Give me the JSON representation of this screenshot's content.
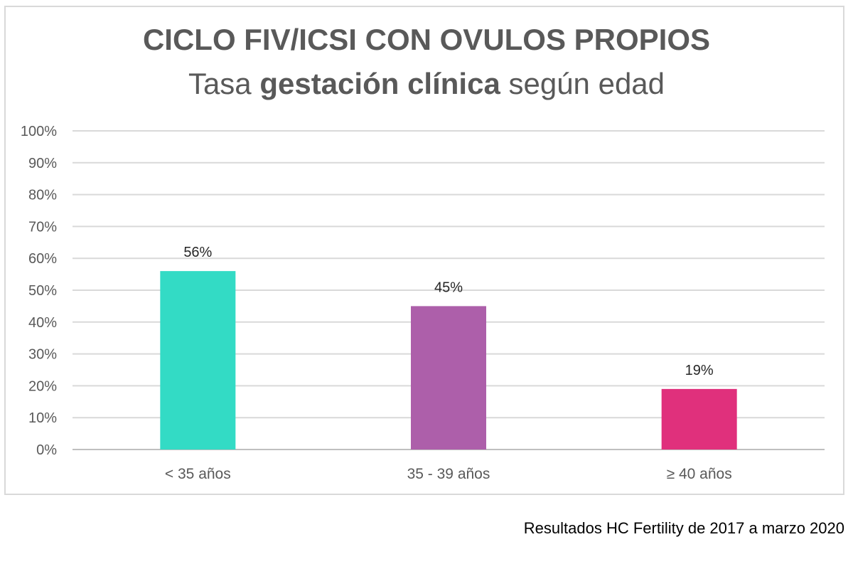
{
  "chart_data": {
    "type": "bar",
    "title": "CICLO FIV/ICSI CON OVULOS PROPIOS",
    "subtitle_parts": [
      "Tasa ",
      "gestación clínica",
      " según edad"
    ],
    "categories": [
      "< 35 años",
      "35 - 39 años",
      "≥ 40 años"
    ],
    "values": [
      56,
      45,
      19
    ],
    "value_labels": [
      "56%",
      "45%",
      "19%"
    ],
    "colors": [
      "#33dbc5",
      "#ad5faa",
      "#e0307c"
    ],
    "y_ticks": [
      "0%",
      "10%",
      "20%",
      "30%",
      "40%",
      "50%",
      "60%",
      "70%",
      "80%",
      "90%",
      "100%"
    ],
    "ylim": [
      0,
      100
    ],
    "grid": true,
    "xlabel": "",
    "ylabel": ""
  },
  "footnote": "Resultados HC Fertility de 2017 a marzo 2020"
}
